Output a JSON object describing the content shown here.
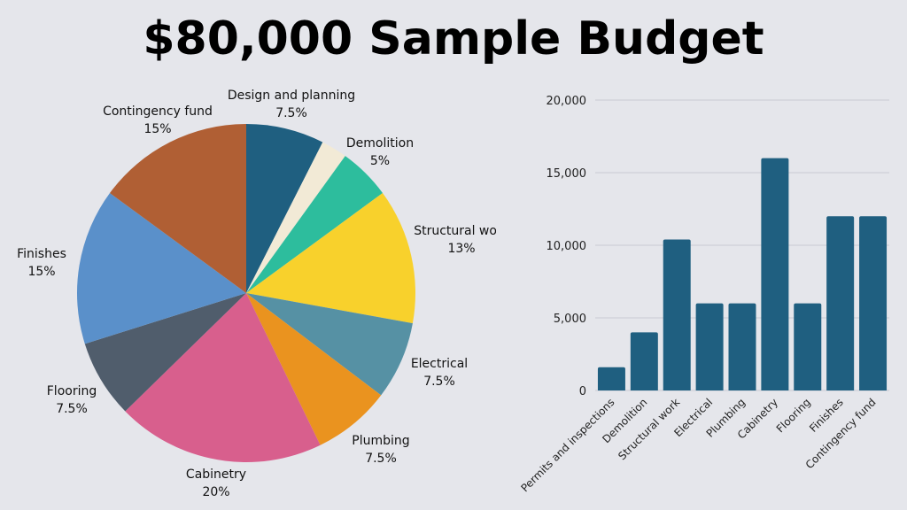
{
  "title": "$80,000 Sample Budget",
  "colors": {
    "background": "#e5e6eb",
    "bar": "#1f5f80",
    "grid": "#c9cbd3"
  },
  "chart_data": [
    {
      "type": "pie",
      "slices": [
        {
          "label": "Design and planning",
          "pct_label": "7.5%",
          "value": 7.5,
          "color": "#1f5f80"
        },
        {
          "label": "",
          "pct_label": "",
          "value": 2.5,
          "color": "#f2ead6"
        },
        {
          "label": "Demolition",
          "pct_label": "5%",
          "value": 5,
          "color": "#2dbd9d"
        },
        {
          "label": "Structural work",
          "pct_label": "13%",
          "value": 13,
          "color": "#f8d12c"
        },
        {
          "label": "Electrical",
          "pct_label": "7.5%",
          "value": 7.5,
          "color": "#5691a4"
        },
        {
          "label": "Plumbing",
          "pct_label": "7.5%",
          "value": 7.5,
          "color": "#ea931f"
        },
        {
          "label": "Cabinetry",
          "pct_label": "20%",
          "value": 20,
          "color": "#d85f8d"
        },
        {
          "label": "Flooring",
          "pct_label": "7.5%",
          "value": 7.5,
          "color": "#505d6c"
        },
        {
          "label": "Finishes",
          "pct_label": "15%",
          "value": 15,
          "color": "#5a90ca"
        },
        {
          "label": "Contingency fund",
          "pct_label": "15%",
          "value": 15,
          "color": "#b05f34"
        }
      ]
    },
    {
      "type": "bar",
      "categories": [
        "Permits and inspections",
        "Demolition",
        "Structural work",
        "Electrical",
        "Plumbing",
        "Cabinetry",
        "Flooring",
        "Finishes",
        "Contingency fund"
      ],
      "values": [
        1600,
        4000,
        10400,
        6000,
        6000,
        16000,
        6000,
        12000,
        12000
      ],
      "ylim": [
        0,
        20000
      ],
      "yticks": [
        0,
        5000,
        10000,
        15000,
        20000
      ],
      "ytick_labels": [
        "0",
        "5,000",
        "10,000",
        "15,000",
        "20,000"
      ],
      "grid": true
    }
  ]
}
